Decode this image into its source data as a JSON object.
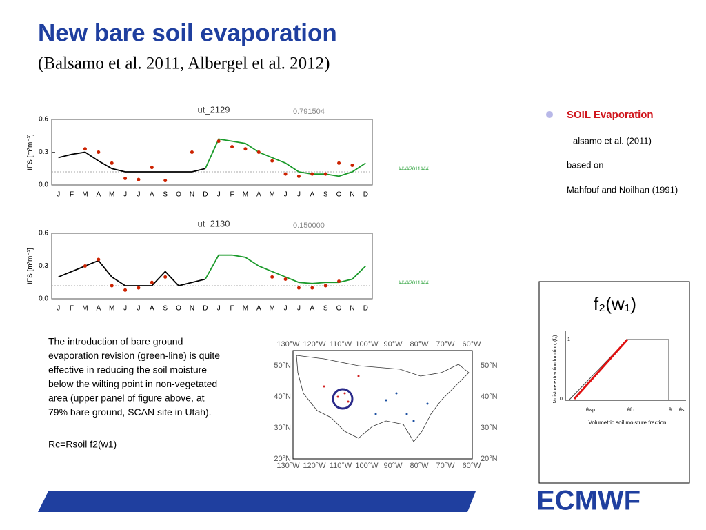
{
  "header": {
    "title": "New bare soil evaporation",
    "subtitle": "(Balsamo et al. 2011, Albergel et al. 2012)"
  },
  "panels": [
    {
      "label": "ut_2129",
      "score": "0.791504",
      "ylabel": "IFS  [m³m⁻³]",
      "note": "####2011###",
      "ylim": [
        0,
        0.6
      ],
      "yticks": [
        {
          "value": 0,
          "label": "0.0"
        },
        0.3,
        0.6
      ],
      "categories": [
        "J",
        "F",
        "M",
        "A",
        "M",
        "J",
        "J",
        "A",
        "S",
        "O",
        "N",
        "D",
        "J",
        "F",
        "M",
        "A",
        "M",
        "J",
        "J",
        "A",
        "S",
        "O",
        "N",
        "D"
      ],
      "series": [
        {
          "color": "#000000",
          "values": [
            0.25,
            0.28,
            0.3,
            0.22,
            0.15,
            0.12,
            0.12,
            0.12,
            0.12,
            0.12,
            0.12,
            0.15,
            null,
            null,
            null,
            null,
            null,
            null,
            null,
            null,
            null,
            null,
            null,
            null
          ]
        },
        {
          "color": "#1a9a2a",
          "values": [
            null,
            null,
            null,
            null,
            null,
            null,
            null,
            null,
            null,
            null,
            null,
            0.15,
            0.42,
            0.4,
            0.38,
            0.3,
            0.25,
            0.2,
            0.12,
            0.1,
            0.1,
            0.08,
            0.12,
            0.2
          ]
        },
        {
          "color": "#cc2200",
          "dots": true,
          "values": [
            null,
            null,
            0.33,
            0.3,
            0.2,
            0.06,
            0.05,
            0.16,
            0.04,
            null,
            0.3,
            null,
            0.4,
            0.35,
            0.33,
            0.3,
            0.22,
            0.1,
            0.08,
            0.1,
            0.1,
            0.2,
            0.18,
            null
          ]
        }
      ]
    },
    {
      "label": "ut_2130",
      "score": "0.150000",
      "ylabel": "IFS  [m³m⁻³]",
      "note": "####2011###",
      "ylim": [
        0,
        0.6
      ],
      "yticks": [
        {
          "value": 0,
          "label": "0.0"
        },
        0.3,
        0.6
      ],
      "categories": [
        "J",
        "F",
        "M",
        "A",
        "M",
        "J",
        "J",
        "A",
        "S",
        "O",
        "N",
        "D",
        "J",
        "F",
        "M",
        "A",
        "M",
        "J",
        "J",
        "A",
        "S",
        "O",
        "N",
        "D"
      ],
      "series": [
        {
          "color": "#000000",
          "values": [
            0.2,
            0.25,
            0.3,
            0.35,
            0.2,
            0.12,
            0.12,
            0.12,
            0.25,
            0.12,
            0.15,
            0.18,
            null,
            null,
            null,
            null,
            null,
            null,
            null,
            null,
            null,
            null,
            null,
            null
          ]
        },
        {
          "color": "#1a9a2a",
          "values": [
            null,
            null,
            null,
            null,
            null,
            null,
            null,
            null,
            null,
            null,
            null,
            0.18,
            0.4,
            0.4,
            0.38,
            0.3,
            0.25,
            0.2,
            0.15,
            0.14,
            0.15,
            0.15,
            0.18,
            0.3
          ]
        },
        {
          "color": "#cc2200",
          "dots": true,
          "values": [
            null,
            null,
            0.3,
            0.36,
            0.12,
            0.08,
            0.1,
            0.15,
            0.2,
            null,
            null,
            null,
            null,
            null,
            null,
            null,
            0.2,
            0.18,
            0.1,
            0.1,
            0.12,
            0.16,
            null,
            null
          ]
        }
      ]
    }
  ],
  "bullets": {
    "heading": "SOIL Evaporation",
    "lines": [
      "alsamo et al. (2011)",
      "based on",
      "Mahfouf and Noilhan (1991)"
    ]
  },
  "inset": {
    "label": "f₂(w₁)",
    "ylabel": "Moisture extraction function, (f₂)",
    "xlabel": "Volumetric soil moisture fraction",
    "yt": [
      "1",
      "0"
    ],
    "xt": [
      "θwp",
      "θfc",
      "θl",
      "θs"
    ]
  },
  "paragraph": [
    "The introduction of bare ground",
    "evaporation revision (green-line) is quite",
    "effective in reducing the soil moisture",
    "below the wilting point in non-vegetated",
    "area (upper panel of figure above, at",
    "79% bare ground, SCAN site in Utah)."
  ],
  "formula": "Rc=Rsoil f2(w1)",
  "map": {
    "lon_labels": [
      "130°W",
      "120°W",
      "110°W",
      "100°W",
      "90°W",
      "80°W",
      "70°W",
      "60°W"
    ],
    "lat_labels": [
      "50°N",
      "40°N",
      "30°N",
      "20°N"
    ]
  },
  "logo": "ECMWF"
}
